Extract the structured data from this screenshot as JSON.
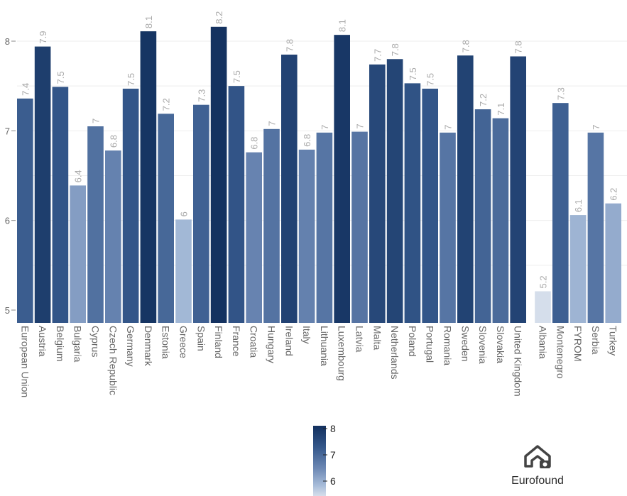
{
  "chart_data": {
    "type": "bar",
    "categories": [
      "European Union",
      "Austria",
      "Belgium",
      "Bulgaria",
      "Cyprus",
      "Czech Republic",
      "Germany",
      "Denmark",
      "Estonia",
      "Greece",
      "Spain",
      "Finland",
      "France",
      "Croatia",
      "Hungary",
      "Ireland",
      "Italy",
      "Lithuania",
      "Luxembourg",
      "Latvia",
      "Malta",
      "Netherlands",
      "Poland",
      "Portugal",
      "Romania",
      "Sweden",
      "Slovenia",
      "Slovakia",
      "United Kingdom",
      "Albania",
      "Montenegro",
      "FYROM",
      "Serbia",
      "Turkey"
    ],
    "values": [
      7.36,
      7.94,
      7.49,
      6.39,
      7.05,
      6.78,
      7.47,
      8.11,
      7.19,
      6.01,
      7.29,
      8.16,
      7.5,
      6.76,
      7.02,
      7.85,
      6.79,
      6.98,
      8.07,
      6.99,
      7.74,
      7.8,
      7.53,
      7.47,
      6.98,
      7.84,
      7.24,
      7.14,
      7.83,
      5.21,
      7.31,
      6.06,
      6.98,
      6.19
    ],
    "value_labels": [
      "7.4",
      "7.9",
      "7.5",
      "6.4",
      "7",
      "6.8",
      "7.5",
      "8.1",
      "7.2",
      "6",
      "7.3",
      "8.2",
      "7.5",
      "6.8",
      "7",
      "7.8",
      "6.8",
      "7",
      "8.1",
      "7",
      "7.7",
      "7.8",
      "7.5",
      "7.5",
      "7",
      "7.8",
      "7.2",
      "7.1",
      "7.8",
      "5.2",
      "7.3",
      "6.1",
      "7",
      "6.2"
    ],
    "group_break_after": "United Kingdom",
    "ylim": [
      4.85,
      8.35
    ],
    "yticks": [
      "5",
      "6",
      "7",
      "8"
    ],
    "grid": true,
    "legend": {
      "type": "colorbar",
      "placement": "bottom-center",
      "ticks": [
        "8",
        "7",
        "6"
      ]
    },
    "colors": {
      "scale": [
        "#d6deeb",
        "#a7bcd9",
        "#6b87b3",
        "#34578a",
        "#12305e"
      ],
      "grid": "#eeeeee",
      "axis_text": "#666666",
      "value_text": "#a9a9a9"
    }
  },
  "logo": {
    "text": "Eurofound",
    "icon": "eurofound-logo-icon"
  }
}
